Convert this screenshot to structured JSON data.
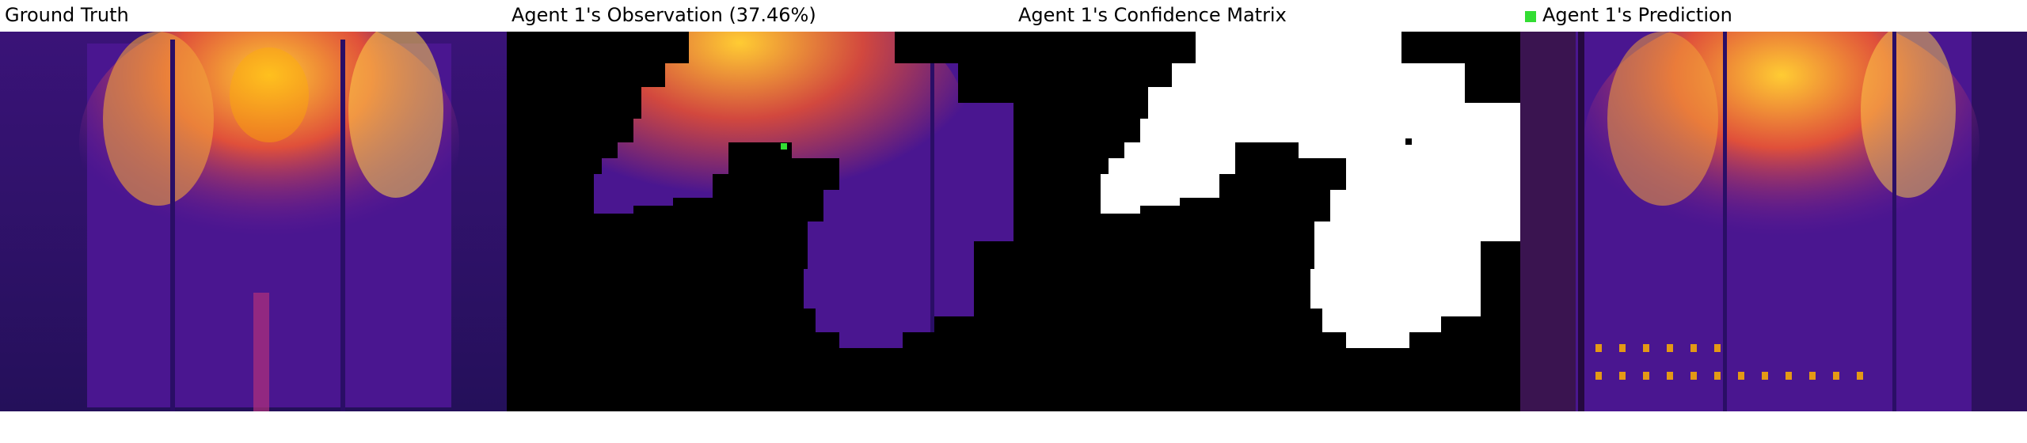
{
  "panels": [
    {
      "title": "Ground Truth"
    },
    {
      "title": "Agent 1's Observation (37.46%)"
    },
    {
      "title": "Agent 1's Confidence Matrix"
    },
    {
      "title": "Agent 1's Prediction",
      "marker_color": "#33dd33"
    }
  ],
  "colors": {
    "background": "#ffffff",
    "thermal_low": "#2a0e66",
    "thermal_mid": "#7b1fa2",
    "thermal_high": "#ffb000",
    "mask": "#000000",
    "confidence": "#ffffff",
    "agent_marker": "#33dd33"
  }
}
